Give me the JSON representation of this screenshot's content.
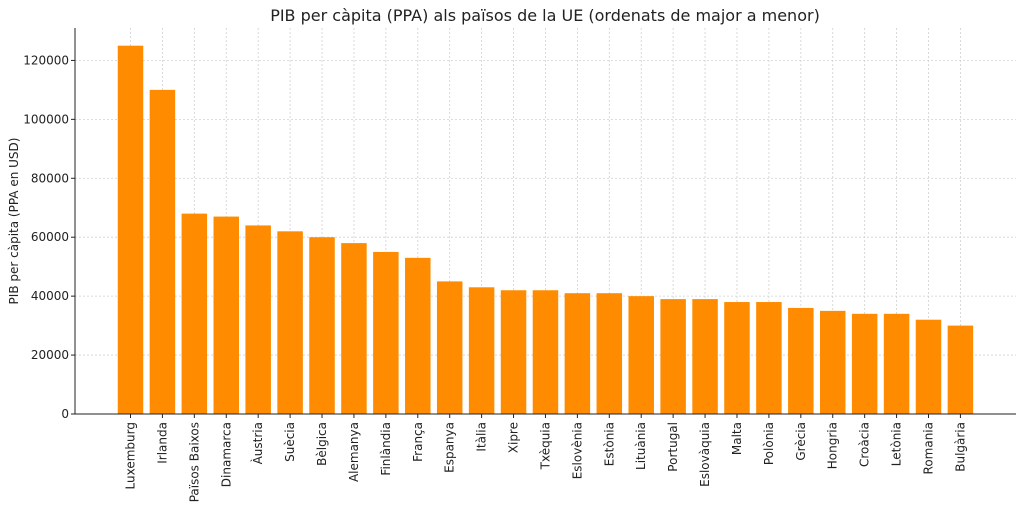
{
  "chart_data": {
    "type": "bar",
    "title": "PIB per càpita (PPA) als països de la UE (ordenats de major a menor)",
    "xlabel": "",
    "ylabel": "PIB per càpita (PPA en USD)",
    "categories": [
      "Luxemburg",
      "Irlanda",
      "Països Baixos",
      "Dinamarca",
      "Àustria",
      "Suècia",
      "Bèlgica",
      "Alemanya",
      "Finlàndia",
      "França",
      "Espanya",
      "Itàlia",
      "Xipre",
      "Txèquia",
      "Eslovènia",
      "Estònia",
      "Lituània",
      "Portugal",
      "Eslovàquia",
      "Malta",
      "Polònia",
      "Grècia",
      "Hongria",
      "Croàcia",
      "Letònia",
      "Romania",
      "Bulgària"
    ],
    "values": [
      125000,
      110000,
      68000,
      67000,
      64000,
      62000,
      60000,
      58000,
      55000,
      53000,
      45000,
      43000,
      42000,
      42000,
      41000,
      41000,
      40000,
      39000,
      39000,
      38000,
      38000,
      36000,
      35000,
      34000,
      34000,
      32000,
      30000
    ],
    "ylim": [
      0,
      131000
    ],
    "yticks": [
      0,
      20000,
      40000,
      60000,
      80000,
      100000,
      120000
    ],
    "grid": true,
    "bar_color": "#ff8c00"
  }
}
